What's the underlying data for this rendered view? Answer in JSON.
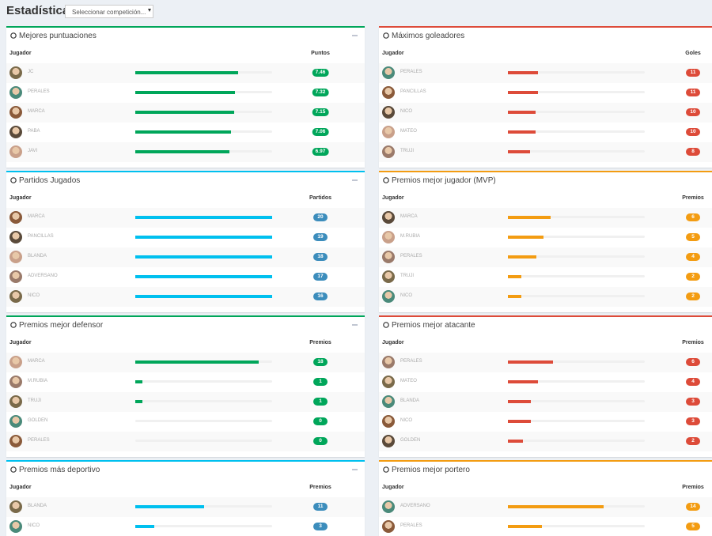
{
  "header": {
    "title": "Estadísticas",
    "select": "Seleccionar competición..."
  },
  "panels": [
    {
      "title": "Mejores puntuaciones",
      "color": "#00a65a",
      "bar_color": "#00a65a",
      "badge_color": "#00a65a",
      "columns": [
        "Jugador",
        "Puntos"
      ],
      "rows": [
        {
          "player": "JC",
          "value": 7.46,
          "bar": 75
        },
        {
          "player": "PERALES",
          "value": 7.32,
          "bar": 73
        },
        {
          "player": "MARCA",
          "value": 7.15,
          "bar": 72
        },
        {
          "player": "PABA",
          "value": 7.06,
          "bar": 70
        },
        {
          "player": "JAVI",
          "value": 6.97,
          "bar": 69
        }
      ]
    },
    {
      "title": "Máximos goleadores",
      "color": "#dd4b39",
      "bar_color": "#dd4b39",
      "badge_color": "#dd4b39",
      "columns": [
        "Jugador",
        "Goles"
      ],
      "rows": [
        {
          "player": "PERALES",
          "value": 11,
          "bar": 22
        },
        {
          "player": "PANCILLAS",
          "value": 11,
          "bar": 22
        },
        {
          "player": "NICO",
          "value": 10,
          "bar": 20
        },
        {
          "player": "MATEO",
          "value": 10,
          "bar": 20
        },
        {
          "player": "TRUJI",
          "value": 8,
          "bar": 16
        }
      ]
    },
    {
      "title": "Partidos Jugados",
      "color": "#00c0ef",
      "bar_color": "#00c0ef",
      "badge_color": "#3c8dbc",
      "columns": [
        "Jugador",
        "Partidos"
      ],
      "rows": [
        {
          "player": "MARCA",
          "value": 20,
          "bar": 100
        },
        {
          "player": "PANCILLAS",
          "value": 19,
          "bar": 100
        },
        {
          "player": "BLANDA",
          "value": 18,
          "bar": 100
        },
        {
          "player": "ADVERSANO",
          "value": 17,
          "bar": 100
        },
        {
          "player": "NICO",
          "value": 16,
          "bar": 100
        }
      ]
    },
    {
      "title": "Premios mejor jugador (MVP)",
      "color": "#f39c12",
      "bar_color": "#f39c12",
      "badge_color": "#f39c12",
      "columns": [
        "Jugador",
        "Premios"
      ],
      "rows": [
        {
          "player": "MARCA",
          "value": 6,
          "bar": 31
        },
        {
          "player": "M.RUBIA",
          "value": 5,
          "bar": 26
        },
        {
          "player": "PERALES",
          "value": 4,
          "bar": 21
        },
        {
          "player": "TRUJI",
          "value": 2,
          "bar": 10
        },
        {
          "player": "NICO",
          "value": 2,
          "bar": 10
        }
      ]
    },
    {
      "title": "Premios mejor defensor",
      "color": "#00a65a",
      "bar_color": "#00a65a",
      "badge_color": "#00a65a",
      "columns": [
        "Jugador",
        "Premios"
      ],
      "rows": [
        {
          "player": "MARCA",
          "value": 18,
          "bar": 90
        },
        {
          "player": "M.RUBIA",
          "value": 1,
          "bar": 5
        },
        {
          "player": "TRUJI",
          "value": 1,
          "bar": 5
        },
        {
          "player": "GOLDEN",
          "value": 0,
          "bar": 0
        },
        {
          "player": "PERALES",
          "value": 0,
          "bar": 0
        }
      ]
    },
    {
      "title": "Premios mejor atacante",
      "color": "#dd4b39",
      "bar_color": "#dd4b39",
      "badge_color": "#dd4b39",
      "columns": [
        "Jugador",
        "Premios"
      ],
      "rows": [
        {
          "player": "PERALES",
          "value": 6,
          "bar": 33
        },
        {
          "player": "MATEO",
          "value": 4,
          "bar": 22
        },
        {
          "player": "BLANDA",
          "value": 3,
          "bar": 17
        },
        {
          "player": "NICO",
          "value": 3,
          "bar": 17
        },
        {
          "player": "GOLDEN",
          "value": 2,
          "bar": 11
        }
      ]
    },
    {
      "title": "Premios más deportivo",
      "color": "#00c0ef",
      "bar_color": "#00c0ef",
      "badge_color": "#3c8dbc",
      "columns": [
        "Jugador",
        "Premios"
      ],
      "rows": [
        {
          "player": "BLANDA",
          "value": 11,
          "bar": 50
        },
        {
          "player": "NICO",
          "value": 3,
          "bar": 14
        }
      ]
    },
    {
      "title": "Premios mejor portero",
      "color": "#f39c12",
      "bar_color": "#f39c12",
      "badge_color": "#f39c12",
      "columns": [
        "Jugador",
        "Premios"
      ],
      "rows": [
        {
          "player": "ADVERSANO",
          "value": 14,
          "bar": 70
        },
        {
          "player": "PERALES",
          "value": 5,
          "bar": 25
        }
      ]
    }
  ]
}
